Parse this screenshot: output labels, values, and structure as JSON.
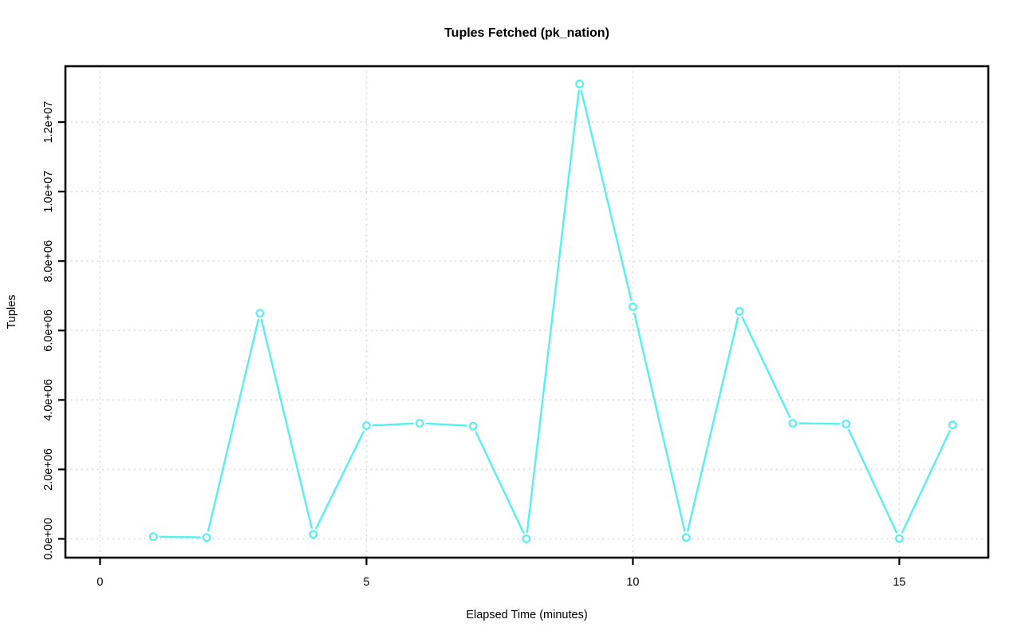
{
  "chart_data": {
    "type": "line",
    "title": "Tuples Fetched (pk_nation)",
    "xlabel": "Elapsed Time (minutes)",
    "ylabel": "Tuples",
    "series_name": "tuples-fetched",
    "x": [
      1,
      2,
      3,
      4,
      5,
      6,
      7,
      8,
      9,
      10,
      11,
      12,
      13,
      14,
      15,
      16
    ],
    "values": [
      65000,
      40000,
      6500000,
      130000,
      3260000,
      3330000,
      3250000,
      0,
      13100000,
      6680000,
      40000,
      6550000,
      3330000,
      3310000,
      10000,
      3280000
    ],
    "line_color": "#55F0F0",
    "marker": "open-circle",
    "marker_color": "#55F0F0",
    "xlim": [
      -0.65,
      16.67
    ],
    "ylim": [
      -540000,
      13610000
    ],
    "x_ticks": [
      0,
      5,
      10,
      15
    ],
    "x_tick_labels": [
      "0",
      "5",
      "10",
      "15"
    ],
    "y_ticks": [
      0,
      2000000,
      4000000,
      6000000,
      8000000,
      10000000,
      12000000
    ],
    "y_tick_labels": [
      "0.0e+00",
      "2.0e+06",
      "4.0e+06",
      "6.0e+06",
      "8.0e+06",
      "1.0e+07",
      "1.2e+07"
    ],
    "grid": true,
    "grid_style": "dotted",
    "grid_color": "#D8D8D8",
    "legend": "none",
    "background": "#FFFFFF",
    "axis_color": "#000000",
    "text_color": "#000000"
  }
}
